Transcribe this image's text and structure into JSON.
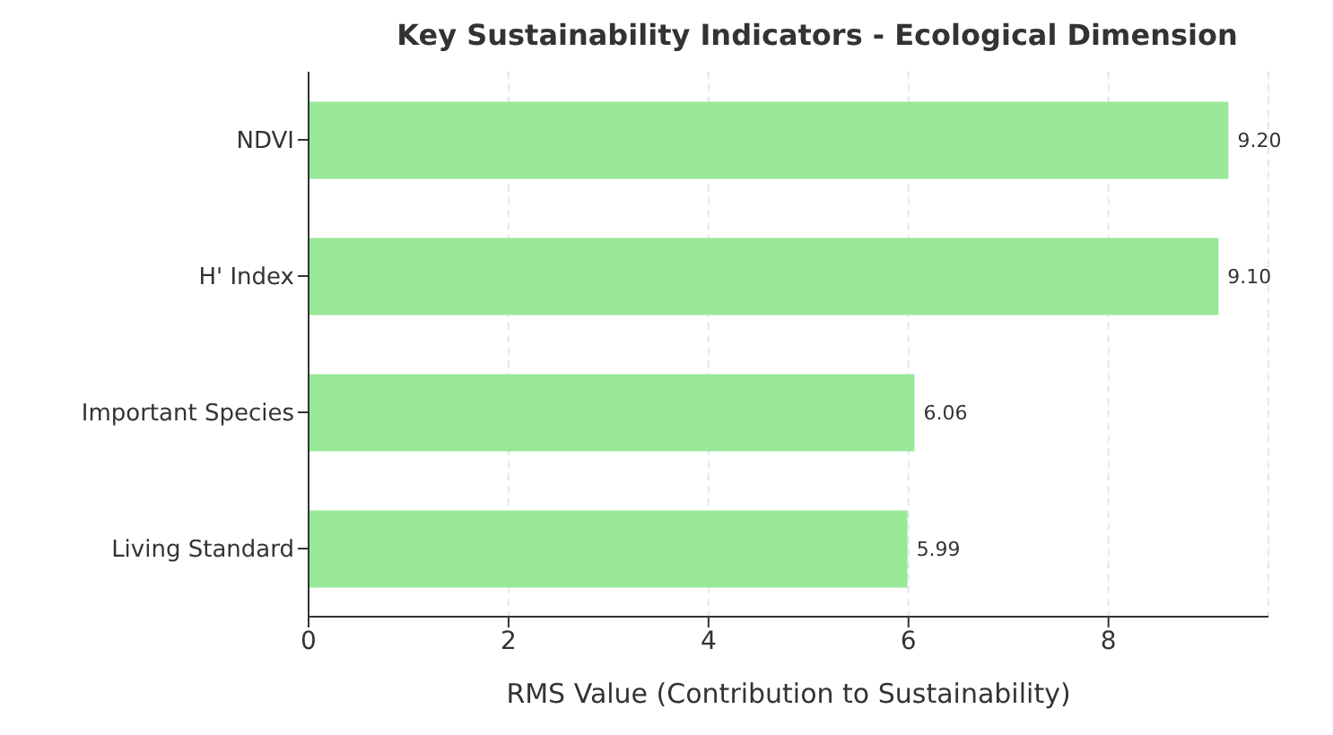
{
  "chart_data": {
    "type": "bar",
    "orientation": "horizontal",
    "title": "Key Sustainability Indicators - Ecological Dimension",
    "xlabel": "RMS Value (Contribution to Sustainability)",
    "categories": [
      "NDVI",
      "H' Index",
      "Important Species",
      "Living Standard"
    ],
    "values": [
      9.2,
      9.1,
      6.06,
      5.99
    ],
    "value_labels": [
      "9.20",
      "9.10",
      "6.06",
      "5.99"
    ],
    "color": "#98e898",
    "xlim": [
      0,
      9.6
    ],
    "xticks": [
      0,
      2,
      4,
      6,
      8
    ],
    "grid": "x",
    "legend": false
  }
}
